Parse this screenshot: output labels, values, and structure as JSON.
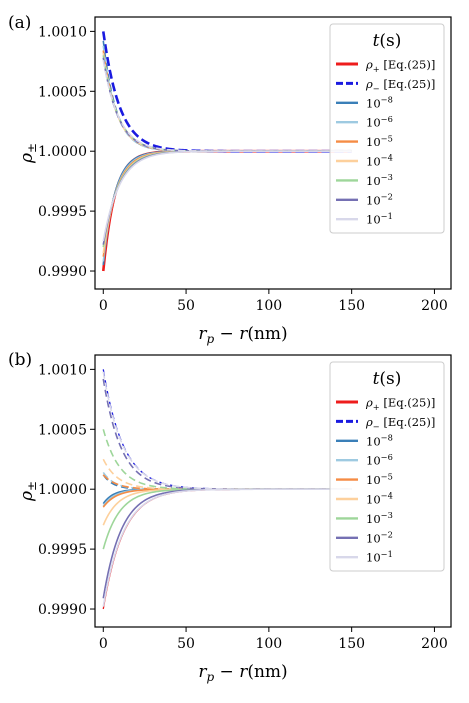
{
  "figure": {
    "panel_labels": [
      "(a)",
      "(b)"
    ]
  },
  "chart_data": [
    {
      "type": "line",
      "panel": "(a)",
      "xlabel": "r_p − r(nm)",
      "ylabel": "ρ±",
      "xlim": [
        -5,
        210
      ],
      "ylim": [
        0.99885,
        1.00112
      ],
      "xticks": [
        0,
        50,
        100,
        150,
        200
      ],
      "yticks": [
        0.999,
        0.9995,
        1.0,
        1.0005,
        1.001
      ],
      "ytick_labels": [
        "0.9990",
        "0.9995",
        "1.0000",
        "1.0005",
        "1.0010"
      ],
      "grid": false,
      "legend": {
        "title": "t(s)",
        "placement": "top-right",
        "entries": [
          {
            "label": "ρ+ [Eq.(25)]",
            "color": "#ee1c1c",
            "style": "solid"
          },
          {
            "label": "ρ− [Eq.(25)]",
            "color": "#1a1ae0",
            "style": "dashed"
          },
          {
            "label": "10^-8",
            "color": "#3a7fb8",
            "style": "solid"
          },
          {
            "label": "10^-6",
            "color": "#9ecae1",
            "style": "solid"
          },
          {
            "label": "10^-5",
            "color": "#f58c45",
            "style": "solid"
          },
          {
            "label": "10^-4",
            "color": "#fdd09c",
            "style": "solid"
          },
          {
            "label": "10^-3",
            "color": "#9ed69a",
            "style": "solid"
          },
          {
            "label": "10^-2",
            "color": "#7570b3",
            "style": "solid"
          },
          {
            "label": "10^-1",
            "color": "#d8d8ea",
            "style": "solid"
          }
        ]
      },
      "series": [
        {
          "name": "ρ+ [Eq.(25)]",
          "color": "#ee1c1c",
          "dashed": false,
          "width": 2.6,
          "rho0": 0.999,
          "lambda": 7
        },
        {
          "name": "ρ− [Eq.(25)]",
          "color": "#1a1ae0",
          "dashed": true,
          "width": 2.6,
          "rho0": 1.001,
          "lambda": 10
        },
        {
          "name": "10^-8",
          "color": "#3a7fb8",
          "dashed": false,
          "width": 1.6,
          "rho0": 0.99905,
          "lambda": 7
        },
        {
          "name": "10^-8",
          "color": "#3a7fb8",
          "dashed": true,
          "width": 1.6,
          "rho0": 1.00092,
          "lambda": 8
        },
        {
          "name": "10^-6",
          "color": "#9ecae1",
          "dashed": false,
          "width": 1.6,
          "rho0": 0.99908,
          "lambda": 7.5
        },
        {
          "name": "10^-6",
          "color": "#9ecae1",
          "dashed": true,
          "width": 1.6,
          "rho0": 1.00088,
          "lambda": 8
        },
        {
          "name": "10^-5",
          "color": "#f58c45",
          "dashed": false,
          "width": 1.6,
          "rho0": 0.99912,
          "lambda": 8
        },
        {
          "name": "10^-5",
          "color": "#f58c45",
          "dashed": true,
          "width": 1.6,
          "rho0": 1.00084,
          "lambda": 8.5
        },
        {
          "name": "10^-4",
          "color": "#fdd09c",
          "dashed": false,
          "width": 1.6,
          "rho0": 0.99915,
          "lambda": 8.5
        },
        {
          "name": "10^-4",
          "color": "#fdd09c",
          "dashed": true,
          "width": 1.6,
          "rho0": 1.00082,
          "lambda": 8.5
        },
        {
          "name": "10^-3",
          "color": "#9ed69a",
          "dashed": false,
          "width": 1.6,
          "rho0": 0.9992,
          "lambda": 9
        },
        {
          "name": "10^-3",
          "color": "#9ed69a",
          "dashed": true,
          "width": 1.6,
          "rho0": 1.0008,
          "lambda": 9
        },
        {
          "name": "10^-2",
          "color": "#7570b3",
          "dashed": false,
          "width": 1.6,
          "rho0": 0.99922,
          "lambda": 9.5
        },
        {
          "name": "10^-2",
          "color": "#7570b3",
          "dashed": true,
          "width": 1.6,
          "rho0": 1.00078,
          "lambda": 9
        },
        {
          "name": "10^-1",
          "color": "#d8d8ea",
          "dashed": false,
          "width": 1.6,
          "rho0": 0.99925,
          "lambda": 10
        },
        {
          "name": "10^-1",
          "color": "#d8d8ea",
          "dashed": true,
          "width": 1.6,
          "rho0": 1.00076,
          "lambda": 9.5
        }
      ]
    },
    {
      "type": "line",
      "panel": "(b)",
      "xlabel": "r_p − r(nm)",
      "ylabel": "ρ±",
      "xlim": [
        -5,
        210
      ],
      "ylim": [
        0.99885,
        1.00112
      ],
      "xticks": [
        0,
        50,
        100,
        150,
        200
      ],
      "yticks": [
        0.999,
        0.9995,
        1.0,
        1.0005,
        1.001
      ],
      "ytick_labels": [
        "0.9990",
        "0.9995",
        "1.0000",
        "1.0005",
        "1.0010"
      ],
      "grid": false,
      "legend": {
        "title": "t(s)",
        "placement": "top-right",
        "entries": [
          {
            "label": "ρ+ [Eq.(25)]",
            "color": "#ee1c1c",
            "style": "solid"
          },
          {
            "label": "ρ− [Eq.(25)]",
            "color": "#1a1ae0",
            "style": "dashed"
          },
          {
            "label": "10^-8",
            "color": "#3a7fb8",
            "style": "solid"
          },
          {
            "label": "10^-6",
            "color": "#9ecae1",
            "style": "solid"
          },
          {
            "label": "10^-5",
            "color": "#f58c45",
            "style": "solid"
          },
          {
            "label": "10^-4",
            "color": "#fdd09c",
            "style": "solid"
          },
          {
            "label": "10^-3",
            "color": "#9ed69a",
            "style": "solid"
          },
          {
            "label": "10^-2",
            "color": "#7570b3",
            "style": "solid"
          },
          {
            "label": "10^-1",
            "color": "#d8d8ea",
            "style": "solid"
          }
        ]
      },
      "series": [
        {
          "name": "ρ+ [Eq.(25)]",
          "color": "#ee1c1c",
          "dashed": false,
          "width": 1.3,
          "rho0": 0.999,
          "lambda": 12
        },
        {
          "name": "ρ− [Eq.(25)]",
          "color": "#1a1ae0",
          "dashed": true,
          "width": 1.3,
          "rho0": 1.001,
          "lambda": 12
        },
        {
          "name": "10^-8",
          "color": "#3a7fb8",
          "dashed": false,
          "width": 1.6,
          "rho0": 0.99988,
          "lambda": 6
        },
        {
          "name": "10^-8",
          "color": "#3a7fb8",
          "dashed": true,
          "width": 1.6,
          "rho0": 1.00012,
          "lambda": 6
        },
        {
          "name": "10^-6",
          "color": "#9ecae1",
          "dashed": false,
          "width": 1.6,
          "rho0": 0.99986,
          "lambda": 7
        },
        {
          "name": "10^-6",
          "color": "#9ecae1",
          "dashed": true,
          "width": 1.6,
          "rho0": 1.00014,
          "lambda": 7
        },
        {
          "name": "10^-5",
          "color": "#f58c45",
          "dashed": false,
          "width": 1.6,
          "rho0": 0.99985,
          "lambda": 8
        },
        {
          "name": "10^-5",
          "color": "#f58c45",
          "dashed": true,
          "width": 1.6,
          "rho0": 1.00012,
          "lambda": 8
        },
        {
          "name": "10^-4",
          "color": "#fdd09c",
          "dashed": false,
          "width": 1.6,
          "rho0": 0.9997,
          "lambda": 9
        },
        {
          "name": "10^-4",
          "color": "#fdd09c",
          "dashed": true,
          "width": 1.6,
          "rho0": 1.00025,
          "lambda": 9
        },
        {
          "name": "10^-3",
          "color": "#9ed69a",
          "dashed": false,
          "width": 1.6,
          "rho0": 0.9995,
          "lambda": 10
        },
        {
          "name": "10^-3",
          "color": "#9ed69a",
          "dashed": true,
          "width": 1.6,
          "rho0": 1.0005,
          "lambda": 10
        },
        {
          "name": "10^-2",
          "color": "#7570b3",
          "dashed": false,
          "width": 1.6,
          "rho0": 0.99909,
          "lambda": 11
        },
        {
          "name": "10^-2",
          "color": "#7570b3",
          "dashed": true,
          "width": 1.6,
          "rho0": 1.00092,
          "lambda": 11
        },
        {
          "name": "10^-1",
          "color": "#d8d8ea",
          "dashed": false,
          "width": 1.6,
          "rho0": 0.99902,
          "lambda": 12
        },
        {
          "name": "10^-1",
          "color": "#d8d8ea",
          "dashed": true,
          "width": 1.6,
          "rho0": 1.00098,
          "lambda": 12
        }
      ]
    }
  ]
}
